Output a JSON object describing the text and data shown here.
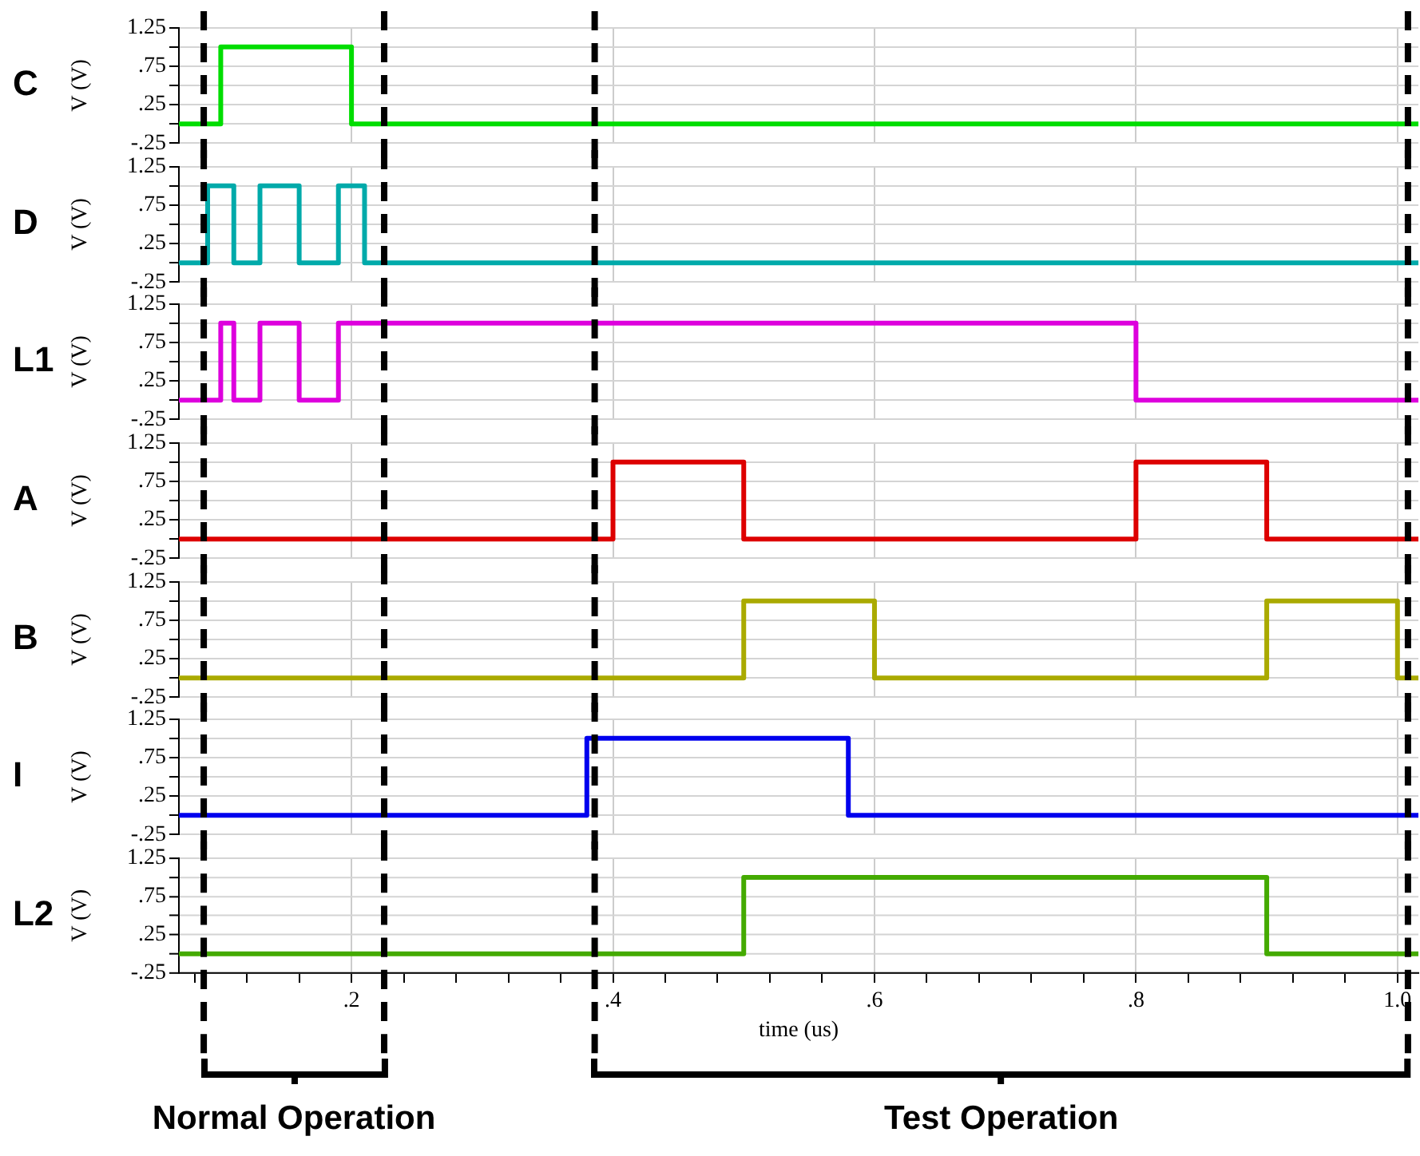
{
  "chart_data": [
    {
      "type": "step",
      "ylabel": "V (V)",
      "xlim": [
        0.068,
        1.016
      ],
      "ylim": [
        -0.25,
        1.25
      ],
      "tick_labels": "y",
      "grid": true,
      "legend": false,
      "line_style": "solid",
      "marker": "none",
      "xticks": [
        {
          "value": 0.2,
          "label": null
        },
        {
          "value": 0.4,
          "label": null
        },
        {
          "value": 0.6,
          "label": null
        },
        {
          "value": 0.8,
          "label": null
        },
        {
          "value": 1.0,
          "label": null
        }
      ],
      "yticks": [
        {
          "value": -0.25,
          "label": "-.25"
        },
        {
          "value": 0,
          "label": null
        },
        {
          "value": 0.25,
          "label": ".25"
        },
        {
          "value": 0.5,
          "label": null
        },
        {
          "value": 0.75,
          "label": ".75"
        },
        {
          "value": 1.0,
          "label": null
        },
        {
          "value": 1.25,
          "label": "1.25"
        }
      ],
      "ref_lines": [
        {
          "axis": "x",
          "value": 0.087,
          "color": "#000000",
          "line_style": "dashed"
        },
        {
          "axis": "x",
          "value": 0.225,
          "color": "#000000",
          "line_style": "dashed"
        },
        {
          "axis": "x",
          "value": 0.386,
          "color": "#000000",
          "line_style": "dashed"
        },
        {
          "axis": "x",
          "value": 1.008,
          "color": "#000000",
          "line_style": "dashed"
        }
      ],
      "series": [
        {
          "name": "C",
          "color": "#00dd00",
          "x": [
            0.068,
            0.1,
            0.2,
            1.016
          ],
          "values": [
            0,
            1,
            0,
            0
          ]
        }
      ]
    },
    {
      "type": "step",
      "ylabel": "V (V)",
      "xlim": [
        0.068,
        1.016
      ],
      "ylim": [
        -0.25,
        1.25
      ],
      "tick_labels": "y",
      "grid": true,
      "legend": false,
      "line_style": "solid",
      "marker": "none",
      "xticks": [
        {
          "value": 0.2,
          "label": null
        },
        {
          "value": 0.4,
          "label": null
        },
        {
          "value": 0.6,
          "label": null
        },
        {
          "value": 0.8,
          "label": null
        },
        {
          "value": 1.0,
          "label": null
        }
      ],
      "yticks": [
        {
          "value": -0.25,
          "label": "-.25"
        },
        {
          "value": 0,
          "label": null
        },
        {
          "value": 0.25,
          "label": ".25"
        },
        {
          "value": 0.5,
          "label": null
        },
        {
          "value": 0.75,
          "label": ".75"
        },
        {
          "value": 1.0,
          "label": null
        },
        {
          "value": 1.25,
          "label": "1.25"
        }
      ],
      "ref_lines": [
        {
          "axis": "x",
          "value": 0.087,
          "color": "#000000",
          "line_style": "dashed"
        },
        {
          "axis": "x",
          "value": 0.225,
          "color": "#000000",
          "line_style": "dashed"
        },
        {
          "axis": "x",
          "value": 0.386,
          "color": "#000000",
          "line_style": "dashed"
        },
        {
          "axis": "x",
          "value": 1.008,
          "color": "#000000",
          "line_style": "dashed"
        }
      ],
      "series": [
        {
          "name": "D",
          "color": "#00aaaa",
          "x": [
            0.068,
            0.09,
            0.11,
            0.13,
            0.16,
            0.19,
            0.21,
            1.016
          ],
          "values": [
            0,
            1,
            0,
            1,
            0,
            1,
            0,
            0
          ]
        }
      ]
    },
    {
      "type": "step",
      "ylabel": "V (V)",
      "xlim": [
        0.068,
        1.016
      ],
      "ylim": [
        -0.25,
        1.25
      ],
      "tick_labels": "y",
      "grid": true,
      "legend": false,
      "line_style": "solid",
      "marker": "none",
      "xticks": [
        {
          "value": 0.2,
          "label": null
        },
        {
          "value": 0.4,
          "label": null
        },
        {
          "value": 0.6,
          "label": null
        },
        {
          "value": 0.8,
          "label": null
        },
        {
          "value": 1.0,
          "label": null
        }
      ],
      "yticks": [
        {
          "value": -0.25,
          "label": "-.25"
        },
        {
          "value": 0,
          "label": null
        },
        {
          "value": 0.25,
          "label": ".25"
        },
        {
          "value": 0.5,
          "label": null
        },
        {
          "value": 0.75,
          "label": ".75"
        },
        {
          "value": 1.0,
          "label": null
        },
        {
          "value": 1.25,
          "label": "1.25"
        }
      ],
      "ref_lines": [
        {
          "axis": "x",
          "value": 0.087,
          "color": "#000000",
          "line_style": "dashed"
        },
        {
          "axis": "x",
          "value": 0.225,
          "color": "#000000",
          "line_style": "dashed"
        },
        {
          "axis": "x",
          "value": 0.386,
          "color": "#000000",
          "line_style": "dashed"
        },
        {
          "axis": "x",
          "value": 1.008,
          "color": "#000000",
          "line_style": "dashed"
        }
      ],
      "series": [
        {
          "name": "L1",
          "color": "#dd00dd",
          "x": [
            0.068,
            0.1,
            0.11,
            0.13,
            0.16,
            0.19,
            0.8,
            1.016
          ],
          "values": [
            0,
            1,
            0,
            1,
            0,
            1,
            0,
            0
          ]
        }
      ]
    },
    {
      "type": "step",
      "ylabel": "V (V)",
      "xlim": [
        0.068,
        1.016
      ],
      "ylim": [
        -0.25,
        1.25
      ],
      "tick_labels": "y",
      "grid": true,
      "legend": false,
      "line_style": "solid",
      "marker": "none",
      "xticks": [
        {
          "value": 0.2,
          "label": null
        },
        {
          "value": 0.4,
          "label": null
        },
        {
          "value": 0.6,
          "label": null
        },
        {
          "value": 0.8,
          "label": null
        },
        {
          "value": 1.0,
          "label": null
        }
      ],
      "yticks": [
        {
          "value": -0.25,
          "label": "-.25"
        },
        {
          "value": 0,
          "label": null
        },
        {
          "value": 0.25,
          "label": ".25"
        },
        {
          "value": 0.5,
          "label": null
        },
        {
          "value": 0.75,
          "label": ".75"
        },
        {
          "value": 1.0,
          "label": null
        },
        {
          "value": 1.25,
          "label": "1.25"
        }
      ],
      "ref_lines": [
        {
          "axis": "x",
          "value": 0.087,
          "color": "#000000",
          "line_style": "dashed"
        },
        {
          "axis": "x",
          "value": 0.225,
          "color": "#000000",
          "line_style": "dashed"
        },
        {
          "axis": "x",
          "value": 0.386,
          "color": "#000000",
          "line_style": "dashed"
        },
        {
          "axis": "x",
          "value": 1.008,
          "color": "#000000",
          "line_style": "dashed"
        }
      ],
      "series": [
        {
          "name": "A",
          "color": "#dd0000",
          "x": [
            0.068,
            0.4,
            0.5,
            0.8,
            0.9,
            1.016
          ],
          "values": [
            0,
            1,
            0,
            1,
            0,
            0
          ]
        }
      ]
    },
    {
      "type": "step",
      "ylabel": "V (V)",
      "xlim": [
        0.068,
        1.016
      ],
      "ylim": [
        -0.25,
        1.25
      ],
      "tick_labels": "y",
      "grid": true,
      "legend": false,
      "line_style": "solid",
      "marker": "none",
      "xticks": [
        {
          "value": 0.2,
          "label": null
        },
        {
          "value": 0.4,
          "label": null
        },
        {
          "value": 0.6,
          "label": null
        },
        {
          "value": 0.8,
          "label": null
        },
        {
          "value": 1.0,
          "label": null
        }
      ],
      "yticks": [
        {
          "value": -0.25,
          "label": "-.25"
        },
        {
          "value": 0,
          "label": null
        },
        {
          "value": 0.25,
          "label": ".25"
        },
        {
          "value": 0.5,
          "label": null
        },
        {
          "value": 0.75,
          "label": ".75"
        },
        {
          "value": 1.0,
          "label": null
        },
        {
          "value": 1.25,
          "label": "1.25"
        }
      ],
      "ref_lines": [
        {
          "axis": "x",
          "value": 0.087,
          "color": "#000000",
          "line_style": "dashed"
        },
        {
          "axis": "x",
          "value": 0.225,
          "color": "#000000",
          "line_style": "dashed"
        },
        {
          "axis": "x",
          "value": 0.386,
          "color": "#000000",
          "line_style": "dashed"
        },
        {
          "axis": "x",
          "value": 1.008,
          "color": "#000000",
          "line_style": "dashed"
        }
      ],
      "series": [
        {
          "name": "B",
          "color": "#aaaa00",
          "x": [
            0.068,
            0.5,
            0.6,
            0.9,
            1.0,
            1.016
          ],
          "values": [
            0,
            1,
            0,
            1,
            0,
            0
          ]
        }
      ]
    },
    {
      "type": "step",
      "ylabel": "V (V)",
      "xlim": [
        0.068,
        1.016
      ],
      "ylim": [
        -0.25,
        1.25
      ],
      "tick_labels": "y",
      "grid": true,
      "legend": false,
      "line_style": "solid",
      "marker": "none",
      "xticks": [
        {
          "value": 0.2,
          "label": null
        },
        {
          "value": 0.4,
          "label": null
        },
        {
          "value": 0.6,
          "label": null
        },
        {
          "value": 0.8,
          "label": null
        },
        {
          "value": 1.0,
          "label": null
        }
      ],
      "yticks": [
        {
          "value": -0.25,
          "label": "-.25"
        },
        {
          "value": 0,
          "label": null
        },
        {
          "value": 0.25,
          "label": ".25"
        },
        {
          "value": 0.5,
          "label": null
        },
        {
          "value": 0.75,
          "label": ".75"
        },
        {
          "value": 1.0,
          "label": null
        },
        {
          "value": 1.25,
          "label": "1.25"
        }
      ],
      "ref_lines": [
        {
          "axis": "x",
          "value": 0.087,
          "color": "#000000",
          "line_style": "dashed"
        },
        {
          "axis": "x",
          "value": 0.225,
          "color": "#000000",
          "line_style": "dashed"
        },
        {
          "axis": "x",
          "value": 0.386,
          "color": "#000000",
          "line_style": "dashed"
        },
        {
          "axis": "x",
          "value": 1.008,
          "color": "#000000",
          "line_style": "dashed"
        }
      ],
      "series": [
        {
          "name": "I",
          "color": "#0000ee",
          "x": [
            0.068,
            0.38,
            0.58,
            1.016
          ],
          "values": [
            0,
            1,
            0,
            0
          ]
        }
      ]
    },
    {
      "type": "step",
      "xlabel": "time (us)",
      "ylabel": "V (V)",
      "xlim": [
        0.068,
        1.016
      ],
      "ylim": [
        -0.25,
        1.25
      ],
      "grid": true,
      "legend": false,
      "line_style": "solid",
      "marker": "none",
      "xticks": [
        {
          "value": 0.08,
          "label": null
        },
        {
          "value": 0.12,
          "label": null
        },
        {
          "value": 0.16,
          "label": null
        },
        {
          "value": 0.2,
          "label": ".2"
        },
        {
          "value": 0.24,
          "label": null
        },
        {
          "value": 0.28,
          "label": null
        },
        {
          "value": 0.32,
          "label": null
        },
        {
          "value": 0.36,
          "label": null
        },
        {
          "value": 0.4,
          "label": ".4"
        },
        {
          "value": 0.44,
          "label": null
        },
        {
          "value": 0.48,
          "label": null
        },
        {
          "value": 0.52,
          "label": null
        },
        {
          "value": 0.56,
          "label": null
        },
        {
          "value": 0.6,
          "label": ".6"
        },
        {
          "value": 0.64,
          "label": null
        },
        {
          "value": 0.68,
          "label": null
        },
        {
          "value": 0.72,
          "label": null
        },
        {
          "value": 0.76,
          "label": null
        },
        {
          "value": 0.8,
          "label": ".8"
        },
        {
          "value": 0.84,
          "label": null
        },
        {
          "value": 0.88,
          "label": null
        },
        {
          "value": 0.92,
          "label": null
        },
        {
          "value": 0.96,
          "label": null
        },
        {
          "value": 1.0,
          "label": "1.0"
        }
      ],
      "yticks": [
        {
          "value": -0.25,
          "label": "-.25"
        },
        {
          "value": 0,
          "label": null
        },
        {
          "value": 0.25,
          "label": ".25"
        },
        {
          "value": 0.5,
          "label": null
        },
        {
          "value": 0.75,
          "label": ".75"
        },
        {
          "value": 1.0,
          "label": null
        },
        {
          "value": 1.25,
          "label": "1.25"
        }
      ],
      "ref_lines": [
        {
          "axis": "x",
          "value": 0.087,
          "color": "#000000",
          "line_style": "dashed"
        },
        {
          "axis": "x",
          "value": 0.225,
          "color": "#000000",
          "line_style": "dashed"
        },
        {
          "axis": "x",
          "value": 0.386,
          "color": "#000000",
          "line_style": "dashed"
        },
        {
          "axis": "x",
          "value": 1.008,
          "color": "#000000",
          "line_style": "dashed"
        }
      ],
      "annotations": [
        "Normal Operation",
        "Test Operation"
      ],
      "series": [
        {
          "name": "L2",
          "color": "#44aa00",
          "x": [
            0.068,
            0.5,
            0.9,
            1.016
          ],
          "values": [
            0,
            1,
            0,
            0
          ]
        }
      ]
    }
  ]
}
